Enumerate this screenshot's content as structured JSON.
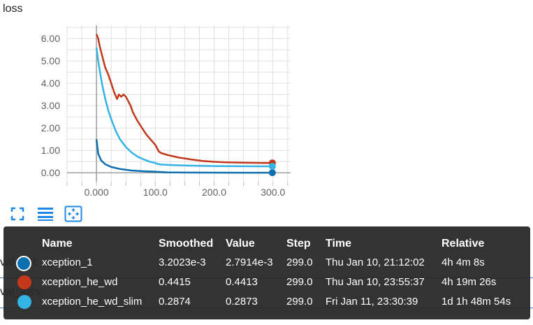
{
  "card": {
    "title": "loss"
  },
  "background_cards": {
    "first": "val_acc",
    "second": "val_loss"
  },
  "toolbar": {
    "expand_icon": "fullscreen-icon",
    "data_icon": "list-icon",
    "fit_icon": "fit-domain-icon"
  },
  "chart_data": {
    "type": "line",
    "title": "loss",
    "xlabel": "",
    "ylabel": "",
    "xlim": [
      -50,
      330
    ],
    "ylim": [
      -0.4,
      6.6
    ],
    "xticks": [
      0,
      100,
      200,
      300
    ],
    "xtick_labels": [
      "0.000",
      "100.0",
      "200.0",
      "300.0"
    ],
    "yticks": [
      0,
      1,
      2,
      3,
      4,
      5,
      6
    ],
    "ytick_labels": [
      "0.00",
      "1.00",
      "2.00",
      "3.00",
      "4.00",
      "5.00",
      "6.00"
    ],
    "grid": true,
    "series": [
      {
        "name": "xception_1",
        "color": "#0b6fb0",
        "points": [
          [
            0,
            1.5
          ],
          [
            3,
            0.85
          ],
          [
            8,
            0.55
          ],
          [
            15,
            0.38
          ],
          [
            25,
            0.26
          ],
          [
            40,
            0.17
          ],
          [
            60,
            0.1
          ],
          [
            80,
            0.07
          ],
          [
            100,
            0.05
          ],
          [
            120,
            0.02
          ],
          [
            150,
            0.01
          ],
          [
            200,
            0.005
          ],
          [
            250,
            0.004
          ],
          [
            299,
            0.0032
          ]
        ]
      },
      {
        "name": "xception_he_wd",
        "color": "#c2381b",
        "points": [
          [
            0,
            6.2
          ],
          [
            3,
            6.0
          ],
          [
            6,
            5.6
          ],
          [
            10,
            5.2
          ],
          [
            15,
            4.7
          ],
          [
            20,
            4.4
          ],
          [
            25,
            4.0
          ],
          [
            30,
            3.6
          ],
          [
            35,
            3.3
          ],
          [
            38,
            3.5
          ],
          [
            42,
            3.4
          ],
          [
            46,
            3.5
          ],
          [
            50,
            3.4
          ],
          [
            54,
            3.2
          ],
          [
            58,
            3.0
          ],
          [
            62,
            2.7
          ],
          [
            66,
            2.5
          ],
          [
            70,
            2.3
          ],
          [
            75,
            2.1
          ],
          [
            80,
            1.9
          ],
          [
            85,
            1.7
          ],
          [
            90,
            1.55
          ],
          [
            95,
            1.4
          ],
          [
            100,
            1.25
          ],
          [
            103,
            1.1
          ],
          [
            106,
            0.95
          ],
          [
            110,
            0.88
          ],
          [
            120,
            0.8
          ],
          [
            140,
            0.68
          ],
          [
            160,
            0.6
          ],
          [
            180,
            0.53
          ],
          [
            200,
            0.49
          ],
          [
            220,
            0.47
          ],
          [
            250,
            0.45
          ],
          [
            280,
            0.442
          ],
          [
            299,
            0.4415
          ]
        ]
      },
      {
        "name": "xception_he_wd_slim",
        "color": "#33b4e4",
        "points": [
          [
            0,
            5.6
          ],
          [
            3,
            5.0
          ],
          [
            6,
            4.5
          ],
          [
            10,
            3.9
          ],
          [
            15,
            3.3
          ],
          [
            20,
            2.8
          ],
          [
            25,
            2.4
          ],
          [
            30,
            2.05
          ],
          [
            35,
            1.75
          ],
          [
            40,
            1.5
          ],
          [
            50,
            1.15
          ],
          [
            60,
            0.9
          ],
          [
            70,
            0.72
          ],
          [
            80,
            0.6
          ],
          [
            90,
            0.5
          ],
          [
            100,
            0.44
          ],
          [
            103,
            0.4
          ],
          [
            110,
            0.37
          ],
          [
            130,
            0.34
          ],
          [
            160,
            0.32
          ],
          [
            200,
            0.3
          ],
          [
            250,
            0.29
          ],
          [
            299,
            0.2874
          ]
        ]
      }
    ]
  },
  "tooltip": {
    "headers": {
      "name": "Name",
      "smoothed": "Smoothed",
      "value": "Value",
      "step": "Step",
      "time": "Time",
      "relative": "Relative"
    },
    "rows": [
      {
        "color": "#0b6fb0",
        "name": "xception_1",
        "smoothed": "3.2023e-3",
        "value": "2.7914e-3",
        "step": "299.0",
        "time": "Thu Jan 10, 21:12:02",
        "relative": "4h 4m 8s"
      },
      {
        "color": "#c2381b",
        "name": "xception_he_wd",
        "smoothed": "0.4415",
        "value": "0.4413",
        "step": "299.0",
        "time": "Thu Jan 10, 23:55:37",
        "relative": "4h 19m 26s"
      },
      {
        "color": "#33b4e4",
        "name": "xception_he_wd_slim",
        "smoothed": "0.2874",
        "value": "0.2873",
        "step": "299.0",
        "time": "Fri Jan 11, 23:30:39",
        "relative": "1d 1h 48m 54s"
      }
    ]
  }
}
